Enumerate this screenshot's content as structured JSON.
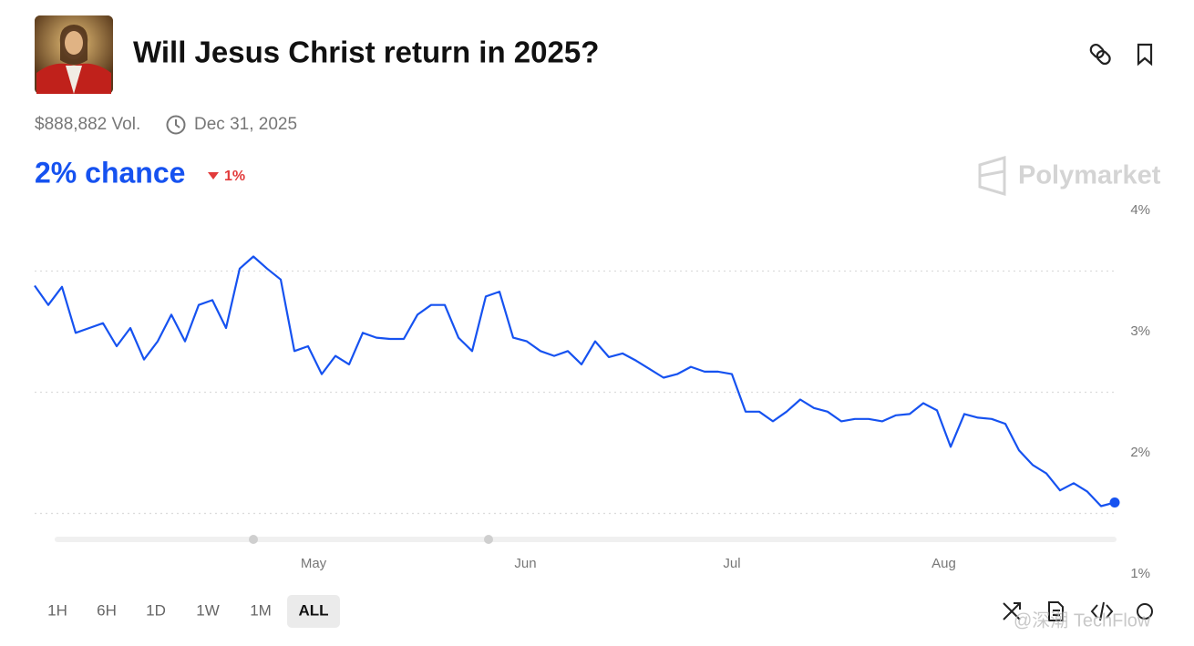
{
  "header": {
    "title": "Will Jesus Christ return in 2025?",
    "volume": "$888,882 Vol.",
    "date": "Dec 31, 2025"
  },
  "chance": {
    "label": "2% chance",
    "change": "1%"
  },
  "brand": "Polymarket",
  "ranges": [
    "1H",
    "6H",
    "1D",
    "1W",
    "1M",
    "ALL"
  ],
  "active_range": 5,
  "watermark": "@深潮 TechFlow",
  "chart_data": {
    "type": "line",
    "series": [
      {
        "color": "#1652f0",
        "values": [
          3.38,
          3.22,
          3.37,
          2.99,
          3.03,
          3.07,
          2.88,
          3.03,
          2.77,
          2.92,
          3.14,
          2.92,
          3.22,
          3.26,
          3.03,
          3.52,
          3.62,
          3.52,
          3.43,
          2.84,
          2.88,
          2.65,
          2.8,
          2.73,
          2.99,
          2.95,
          2.94,
          2.94,
          3.14,
          3.22,
          3.22,
          2.95,
          2.84,
          3.29,
          3.33,
          2.95,
          2.92,
          2.84,
          2.8,
          2.84,
          2.73,
          2.92,
          2.79,
          2.82,
          2.76,
          2.69,
          2.62,
          2.65,
          2.71,
          2.67,
          2.67,
          2.65,
          2.34,
          2.34,
          2.26,
          2.34,
          2.44,
          2.37,
          2.34,
          2.26,
          2.28,
          2.28,
          2.26,
          2.31,
          2.32,
          2.41,
          2.35,
          2.05,
          2.32,
          2.29,
          2.28,
          2.24,
          2.02,
          1.9,
          1.83,
          1.69,
          1.75,
          1.68,
          1.56,
          1.59
        ]
      }
    ],
    "xlim": [
      0,
      79
    ],
    "xticks": [
      {
        "value": 20.4,
        "label": "May"
      },
      {
        "value": 35.9,
        "label": "Jun"
      },
      {
        "value": 51,
        "label": "Jul"
      },
      {
        "value": 66.5,
        "label": "Aug"
      }
    ],
    "ylim": [
      1,
      4
    ],
    "yticks": [
      {
        "value": 4,
        "label": "4%"
      },
      {
        "value": 3,
        "label": "3%"
      },
      {
        "value": 2,
        "label": "2%"
      },
      {
        "value": 1,
        "label": "1%"
      }
    ],
    "grid_lines": [
      3.5,
      2.5,
      1.5
    ]
  }
}
